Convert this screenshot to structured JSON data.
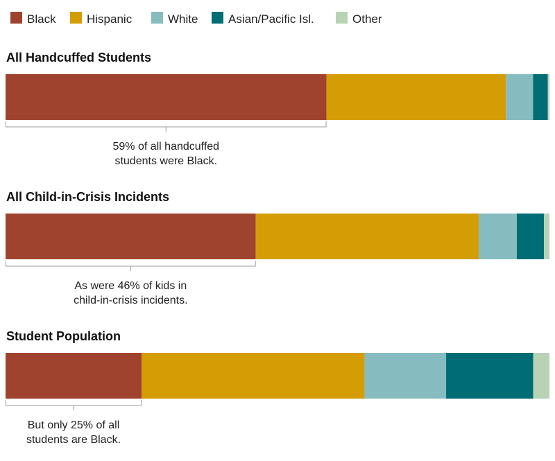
{
  "chart_data": {
    "type": "bar",
    "stacked": true,
    "orientation": "horizontal",
    "legend": [
      {
        "name": "Black",
        "color": "#A0432E"
      },
      {
        "name": "Hispanic",
        "color": "#D49D05"
      },
      {
        "name": "White",
        "color": "#86BCC0"
      },
      {
        "name": "Asian/Pacific Isl.",
        "color": "#006C74"
      },
      {
        "name": "Other",
        "color": "#B7D3B4"
      }
    ],
    "legend_placement": "top",
    "groups": [
      {
        "title": "All Handcuffed Students",
        "values": [
          59,
          33,
          5,
          2.7,
          0.3
        ],
        "annotation": [
          "59% of all handcuffed",
          "students were Black."
        ]
      },
      {
        "title": "All Child-in-Crisis Incidents",
        "values": [
          46,
          41,
          7,
          5,
          1
        ],
        "annotation": [
          "As were 46% of kids in",
          "child-in-crisis incidents."
        ]
      },
      {
        "title": "Student Population",
        "values": [
          25,
          41,
          15,
          16,
          3
        ],
        "annotation": [
          "But only 25% of all",
          "students are Black."
        ]
      }
    ]
  }
}
